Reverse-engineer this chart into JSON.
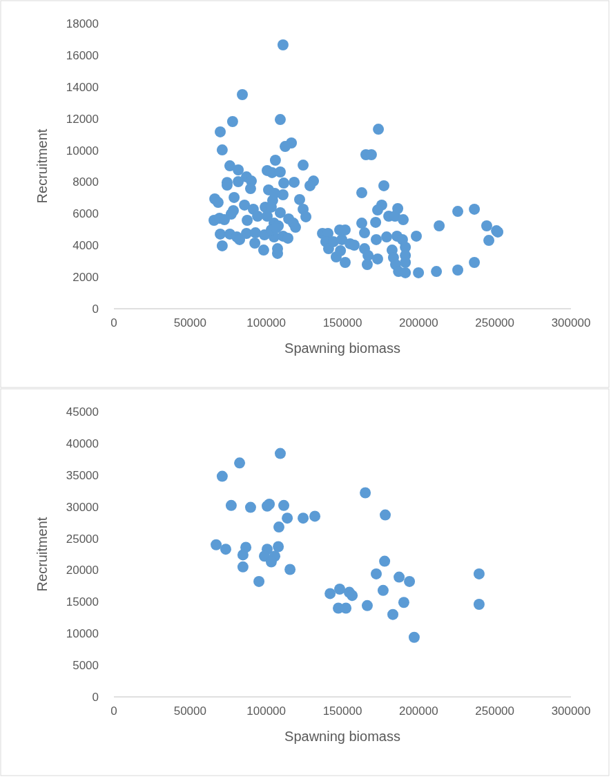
{
  "chart_data": [
    {
      "type": "scatter",
      "xlabel": "Spawning biomass",
      "ylabel": "Recruitment",
      "xlim": [
        0,
        300000
      ],
      "ylim": [
        0,
        18000
      ],
      "xticks": [
        0,
        50000,
        100000,
        150000,
        200000,
        250000,
        300000
      ],
      "yticks": [
        0,
        2000,
        4000,
        6000,
        8000,
        10000,
        12000,
        14000,
        16000,
        18000
      ],
      "marker": "circle",
      "series": [
        {
          "color": "#5b9bd5",
          "x": [
            111000,
            84300,
            77900,
            69800,
            109200,
            116500,
            112400,
            71100,
            106000,
            124200,
            76100,
            81600,
            100600,
            103800,
            109200,
            87000,
            90200,
            74300,
            74300,
            81600,
            111500,
            118300,
            131000,
            128700,
            89700,
            101500,
            105600,
            111000,
            78900,
            66200,
            68400,
            121900,
            104200,
            124200,
            126000,
            85700,
            91500,
            78400,
            77000,
            99300,
            103300,
            65700,
            69300,
            72500,
            87500,
            109200,
            114700,
            117800,
            119200,
            94300,
            100600,
            105100,
            107900,
            69800,
            76100,
            80700,
            87000,
            92900,
            98800,
            105100,
            111000,
            114200,
            82500,
            71100,
            92500,
            98300,
            107400,
            107400,
            103300,
            106500,
            173600,
            165400,
            169000,
            177200,
            162700,
            175800,
            173100,
            171800,
            186300,
            180400,
            184500,
            189900,
            213500,
            162700,
            164500,
            198500,
            136900,
            140500,
            148200,
            151800,
            139100,
            140900,
            144100,
            149600,
            155000,
            157700,
            145900,
            151800,
            148700,
            164500,
            166800,
            166300,
            173100,
            172200,
            179000,
            185800,
            189400,
            191300,
            182600,
            183500,
            184900,
            186800,
            191300,
            191300,
            191300,
            199900,
            211700,
            225700,
            236600,
            244700,
            252000,
            251100,
            246100,
            236600,
            225700
          ],
          "values": [
            16650,
            13510,
            11810,
            11160,
            11940,
            10460,
            10240,
            10020,
            9370,
            9060,
            9020,
            8760,
            8720,
            8590,
            8630,
            8320,
            8060,
            7970,
            7800,
            8020,
            7930,
            7980,
            8060,
            7760,
            7580,
            7500,
            7280,
            7190,
            7020,
            6930,
            6710,
            6890,
            6840,
            6280,
            5800,
            6540,
            6280,
            6190,
            5970,
            6410,
            6410,
            5580,
            5710,
            5620,
            5580,
            6060,
            5670,
            5400,
            5140,
            5840,
            5840,
            5400,
            5230,
            4710,
            4710,
            4530,
            4750,
            4790,
            4660,
            4530,
            4580,
            4450,
            4360,
            3970,
            4140,
            3700,
            3490,
            3790,
            4970,
            5100,
            11330,
            9720,
            9720,
            7760,
            7320,
            6540,
            6230,
            5450,
            6320,
            5840,
            5840,
            5620,
            5230,
            5400,
            4790,
            4580,
            4750,
            4750,
            4970,
            4970,
            4230,
            3790,
            4230,
            4360,
            4100,
            4010,
            3270,
            2920,
            3660,
            3790,
            3360,
            2790,
            3140,
            4360,
            4530,
            4580,
            4360,
            3880,
            3700,
            3230,
            2790,
            2350,
            3360,
            2920,
            2270,
            2270,
            2350,
            6140,
            6280,
            5230,
            4840,
            4920,
            4310,
            2920,
            2440
          ]
        }
      ]
    },
    {
      "type": "scatter",
      "xlabel": "Spawning biomass",
      "ylabel": "Recruitment",
      "xlim": [
        0,
        300000
      ],
      "ylim": [
        0,
        45000
      ],
      "xticks": [
        0,
        50000,
        100000,
        150000,
        200000,
        250000,
        300000
      ],
      "yticks": [
        0,
        5000,
        10000,
        15000,
        20000,
        25000,
        30000,
        35000,
        40000,
        45000
      ],
      "marker": "circle",
      "series": [
        {
          "color": "#5b9bd5",
          "x": [
            71100,
            82500,
            109200,
            77000,
            89700,
            100600,
            102000,
            111500,
            113800,
            124200,
            131900,
            108300,
            165000,
            178100,
            67100,
            73400,
            86600,
            84700,
            84700,
            100600,
            98800,
            107900,
            105600,
            103300,
            115600,
            95200,
            177700,
            172200,
            187200,
            194000,
            176700,
            141900,
            148200,
            154500,
            156400,
            147300,
            152300,
            166300,
            190300,
            183100,
            197100,
            239700,
            239700
          ],
          "values": [
            34800,
            36900,
            38400,
            30200,
            29900,
            30100,
            30400,
            30200,
            28200,
            28200,
            28500,
            26800,
            32200,
            28700,
            24000,
            23300,
            23600,
            22400,
            20500,
            23300,
            22200,
            23700,
            22200,
            21300,
            20100,
            18200,
            21400,
            19400,
            18900,
            18200,
            16800,
            16300,
            17000,
            16500,
            16000,
            14000,
            14000,
            14400,
            14900,
            13000,
            9400,
            19400,
            14600
          ]
        }
      ]
    }
  ]
}
